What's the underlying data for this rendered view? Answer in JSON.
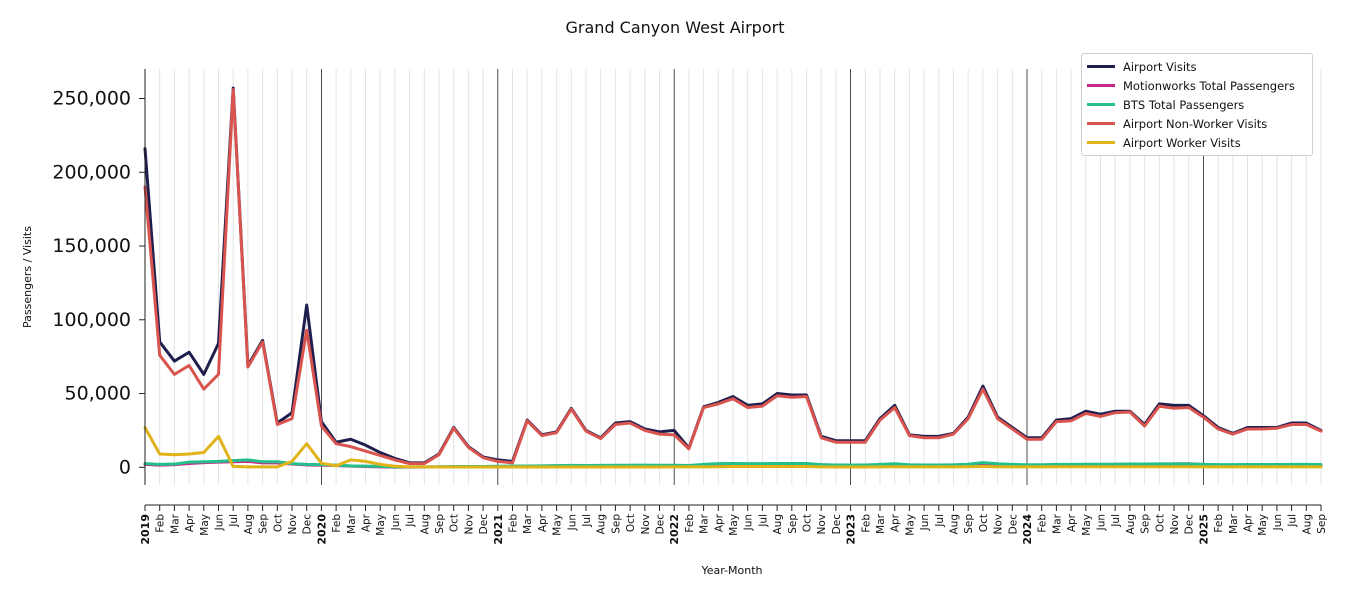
{
  "chart_data": {
    "type": "line",
    "title": "Grand Canyon West Airport",
    "xlabel": "Year-Month",
    "ylabel": "Passengers / Visits",
    "ylim": [
      -12000,
      270000
    ],
    "yticks": [
      0,
      50000,
      100000,
      150000,
      200000,
      250000
    ],
    "ytick_labels": [
      "0",
      "50,000",
      "100,000",
      "150,000",
      "200,000",
      "250,000"
    ],
    "x_labels": [
      "2019",
      "Feb",
      "Mar",
      "Apr",
      "May",
      "Jun",
      "Jul",
      "Aug",
      "Sep",
      "Oct",
      "Nov",
      "Dec",
      "2020",
      "Feb",
      "Mar",
      "Apr",
      "May",
      "Jun",
      "Jul",
      "Aug",
      "Sep",
      "Oct",
      "Nov",
      "Dec",
      "2021",
      "Feb",
      "Mar",
      "Apr",
      "May",
      "Jun",
      "Jul",
      "Aug",
      "Sep",
      "Oct",
      "Nov",
      "Dec",
      "2022",
      "Feb",
      "Mar",
      "Apr",
      "May",
      "Jun",
      "Jul",
      "Aug",
      "Sep",
      "Oct",
      "Nov",
      "Dec",
      "2023",
      "Feb",
      "Mar",
      "Apr",
      "May",
      "Jun",
      "Jul",
      "Aug",
      "Sep",
      "Oct",
      "Nov",
      "Dec",
      "2024",
      "Feb",
      "Mar",
      "Apr",
      "May",
      "Jun",
      "Jul",
      "Aug",
      "Sep",
      "Oct",
      "Nov",
      "Dec",
      "2025",
      "Feb",
      "Mar",
      "Apr",
      "May",
      "Jun",
      "Jul",
      "Aug",
      "Sep"
    ],
    "legend_position": "top-right",
    "grid": "vertical",
    "series": [
      {
        "name": "Airport Visits",
        "color": "#1f1f4f",
        "values": [
          216000,
          85000,
          72000,
          78000,
          63000,
          84000,
          257000,
          69000,
          86000,
          30000,
          37000,
          110000,
          31000,
          17000,
          19000,
          15000,
          10000,
          6000,
          3000,
          3000,
          9000,
          27000,
          14000,
          7000,
          5000,
          4000,
          32000,
          22000,
          24000,
          40000,
          25000,
          20000,
          30000,
          31000,
          26000,
          24000,
          25000,
          13000,
          41000,
          44000,
          48000,
          42000,
          43000,
          50000,
          49000,
          49000,
          21000,
          18000,
          18000,
          18000,
          33000,
          42000,
          22000,
          21000,
          21000,
          23000,
          34000,
          55000,
          34000,
          27000,
          20000,
          20000,
          32000,
          33000,
          38000,
          36000,
          38000,
          38000,
          29000,
          43000,
          42000,
          42000,
          35000,
          27000,
          23000,
          27000,
          27000,
          27000,
          30000,
          30000,
          25000
        ]
      },
      {
        "name": "Motionworks Total Passengers",
        "color": "#c8288c",
        "values": [
          2000,
          1500,
          1800,
          2600,
          3200,
          3500,
          3800,
          4000,
          3000,
          3000,
          2200,
          1600,
          1500,
          1200,
          800,
          500,
          300,
          100,
          100,
          200,
          300,
          400,
          400,
          400,
          500,
          600,
          800,
          900,
          1000,
          1100,
          1000,
          1000,
          1100,
          1100,
          1200,
          1100,
          1200,
          1000,
          1200,
          1300,
          1500,
          1700,
          1800,
          1800,
          1900,
          1900,
          1700,
          1400,
          1400,
          1400,
          1500,
          1600,
          1500,
          1400,
          1400,
          1500,
          1600,
          2000,
          1700,
          1500,
          1300,
          1300,
          1600,
          1700,
          1800,
          1900,
          2000,
          2100,
          2100,
          2200,
          2300,
          2400,
          1900,
          1500,
          1300,
          1300,
          1300,
          1300,
          1400,
          1400,
          1300
        ]
      },
      {
        "name": "BTS Total Passengers",
        "color": "#23c08c",
        "values": [
          2500,
          2000,
          2200,
          3500,
          3800,
          4000,
          4500,
          5000,
          3800,
          3800,
          2500,
          2000,
          1800,
          1500,
          1000,
          800,
          600,
          300,
          200,
          300,
          400,
          500,
          500,
          500,
          700,
          800,
          900,
          1000,
          1100,
          1300,
          1200,
          1300,
          1400,
          1400,
          1500,
          1400,
          1400,
          1200,
          2000,
          2500,
          2600,
          2500,
          2500,
          2600,
          2600,
          2600,
          1800,
          1600,
          1600,
          1600,
          2000,
          2400,
          1700,
          1600,
          1600,
          1700,
          2100,
          3200,
          2400,
          2000,
          1700,
          1700,
          2000,
          2000,
          2100,
          2100,
          2100,
          2200,
          2200,
          2300,
          2300,
          2300,
          2000,
          1800,
          1800,
          1900,
          1900,
          1900,
          2000,
          2000,
          1900
        ]
      },
      {
        "name": "Airport Non-Worker Visits",
        "color": "#d9544f",
        "values": [
          190000,
          76000,
          63000,
          69000,
          53000,
          63000,
          256000,
          68000,
          85000,
          29000,
          33000,
          93000,
          28000,
          16000,
          14000,
          11000,
          8000,
          5000,
          2500,
          2500,
          8500,
          26500,
          13500,
          6500,
          4000,
          3000,
          31500,
          21500,
          23500,
          39500,
          24500,
          19500,
          29000,
          30000,
          25000,
          22500,
          22000,
          12500,
          40500,
          43000,
          46500,
          40500,
          41500,
          48500,
          47500,
          48000,
          20000,
          17000,
          17000,
          17000,
          32000,
          40500,
          21500,
          20000,
          20000,
          22500,
          33000,
          53000,
          33000,
          26000,
          19000,
          19000,
          31000,
          31500,
          36500,
          34500,
          37000,
          37500,
          28000,
          41500,
          40000,
          40500,
          34000,
          26000,
          22500,
          26000,
          26000,
          26500,
          29000,
          29000,
          24500
        ]
      },
      {
        "name": "Airport Worker Visits",
        "color": "#e0b31a",
        "values": [
          27000,
          9000,
          8500,
          9000,
          10000,
          21000,
          600,
          300,
          300,
          300,
          4000,
          16000,
          2800,
          1000,
          5000,
          4000,
          2000,
          700,
          300,
          300,
          200,
          200,
          200,
          200,
          200,
          200,
          200,
          200,
          200,
          200,
          200,
          200,
          200,
          200,
          200,
          200,
          300,
          300,
          300,
          400,
          500,
          500,
          500,
          500,
          500,
          500,
          300,
          200,
          200,
          200,
          300,
          400,
          300,
          300,
          300,
          300,
          400,
          600,
          400,
          300,
          300,
          300,
          400,
          400,
          400,
          400,
          400,
          400,
          400,
          400,
          400,
          400,
          300,
          300,
          300,
          300,
          300,
          300,
          300,
          300,
          300
        ]
      }
    ]
  }
}
